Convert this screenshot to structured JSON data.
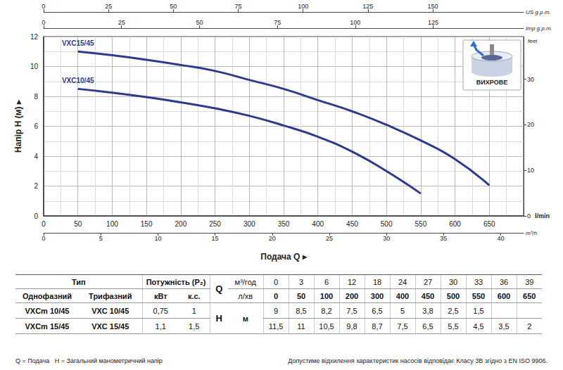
{
  "chart_data": {
    "type": "line",
    "x_title": "Подача Q ▸",
    "y_title": "Напір H (м) ▸",
    "x_unit": "l/min",
    "x": [
      50,
      100,
      150,
      200,
      250,
      300,
      350,
      400,
      450,
      500,
      550,
      600,
      650
    ],
    "series": [
      {
        "name": "VXC15/45",
        "color": "#2c3b8e",
        "line_style": "solid",
        "values": [
          11.0,
          10.75,
          10.45,
          10.1,
          9.7,
          9.1,
          8.5,
          7.75,
          7.0,
          6.1,
          5.05,
          3.8,
          2.05
        ]
      },
      {
        "name": "VXC10/45",
        "color": "#2c3b8e",
        "line_style": "solid",
        "values": [
          8.5,
          8.25,
          7.95,
          7.6,
          7.2,
          6.7,
          6.05,
          5.3,
          4.3,
          3.0,
          1.5,
          null,
          null
        ]
      }
    ],
    "xlim": [
      0,
      700
    ],
    "xticks": [
      0,
      50,
      100,
      150,
      200,
      250,
      300,
      350,
      400,
      450,
      500,
      550,
      600,
      650
    ],
    "ylim": [
      0,
      12
    ],
    "yticks": [
      0,
      2,
      4,
      6,
      8,
      10,
      12
    ],
    "x2lim": [
      0,
      185
    ],
    "x2ticks": [
      0,
      25,
      50,
      75,
      100,
      125,
      150
    ],
    "x2_unit": "US g.p.m.",
    "x3lim": [
      0,
      154
    ],
    "x3ticks": [
      0,
      25,
      50,
      75,
      100,
      125
    ],
    "x3_unit": "Imp g.p.m.",
    "x4lim": [
      0,
      42
    ],
    "x4ticks": [
      0,
      5,
      10,
      15,
      20,
      25,
      30,
      35,
      40
    ],
    "x4_unit": "m³/h",
    "y2lim": [
      0,
      39.37
    ],
    "y2ticks": [
      0,
      10,
      20,
      30
    ],
    "y2_unit": "feet",
    "grid": true,
    "annotations": [
      "ВИХРОВЕ"
    ]
  },
  "table": {
    "type_head": "Тип",
    "power_head": "Потужність (P₂)",
    "phase_heads": [
      "Однофазний",
      "Трифазний"
    ],
    "power_units": [
      "кВт",
      "к.с."
    ],
    "q_symbol": "Q",
    "q_units": [
      "м³/год",
      "л/хв"
    ],
    "q_values": [
      [
        "0",
        "3",
        "6",
        "12",
        "18",
        "24",
        "27",
        "30",
        "33",
        "36",
        "39"
      ],
      [
        "0",
        "50",
        "100",
        "200",
        "300",
        "400",
        "450",
        "500",
        "550",
        "600",
        "650"
      ]
    ],
    "h_symbol": "H",
    "h_unit": "м",
    "rows": [
      {
        "single": "VXCm 10/45",
        "three": "VXC 10/45",
        "kw": "0,75",
        "hp": "1",
        "h": [
          "9",
          "8,5",
          "8,2",
          "7,5",
          "6,5",
          "5",
          "3,8",
          "2,5",
          "1,5",
          null,
          null
        ]
      },
      {
        "single": "VXCm 15/45",
        "three": "VXC 15/45",
        "kw": "1,1",
        "hp": "1,5",
        "h": [
          "11,5",
          "11",
          "10,5",
          "9,8",
          "8,7",
          "7,5",
          "6,5",
          "5,5",
          "4,5",
          "3,5",
          "2"
        ]
      }
    ]
  },
  "footnotes": {
    "symbols": [
      "Q = Подача",
      "H = Загальний манометричний напір"
    ],
    "tolerance": "Допустиме відхилення характеристик насосів відповідає Класу 3B згідно з EN ISO 9906."
  }
}
